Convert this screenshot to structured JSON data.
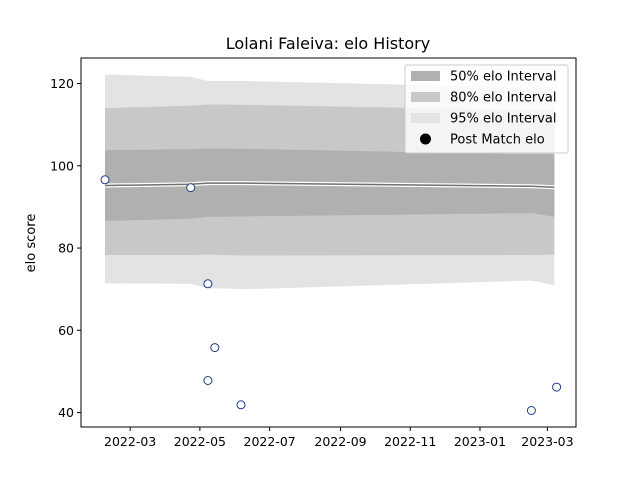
{
  "chart_data": {
    "type": "area",
    "title": "Lolani Faleiva: elo History",
    "xlabel": "",
    "ylabel": "elo score",
    "xlim": [
      "2022-01-17",
      "2023-03-26"
    ],
    "ylim": [
      36.5,
      126.2
    ],
    "x_ticks": [
      "2022-03",
      "2022-05",
      "2022-07",
      "2022-09",
      "2022-11",
      "2023-01",
      "2023-03"
    ],
    "y_ticks": [
      40,
      60,
      80,
      100,
      120
    ],
    "grid": false,
    "legend_position": "top-right",
    "legend": [
      {
        "label": "50% elo Interval",
        "color": "#b0b0b0",
        "marker": "patch"
      },
      {
        "label": "80% elo Interval",
        "color": "#c8c8c8",
        "marker": "patch"
      },
      {
        "label": "95% elo Interval",
        "color": "#e3e3e3",
        "marker": "patch"
      },
      {
        "label": "Post Match elo",
        "color": "#000000",
        "marker": "circle"
      }
    ],
    "x": [
      "2022-02-07",
      "2022-04-23",
      "2022-05-08",
      "2022-05-20",
      "2022-06-10",
      "2023-02-15",
      "2023-03-07"
    ],
    "series": [
      {
        "band": "95",
        "fill": "#e3e3e3",
        "upper": [
          122.2,
          121.6,
          120.6,
          120.6,
          120.6,
          119.0,
          119.2
        ],
        "lower": [
          71.4,
          71.3,
          70.2,
          70.2,
          70.0,
          72.1,
          71.0
        ]
      },
      {
        "band": "80",
        "fill": "#c8c8c8",
        "upper": [
          114.0,
          114.6,
          114.9,
          114.9,
          114.8,
          113.5,
          113.6
        ],
        "lower": [
          78.3,
          78.3,
          78.4,
          78.3,
          78.2,
          78.3,
          78.4
        ]
      },
      {
        "band": "50",
        "fill": "#b0b0b0",
        "upper": [
          103.8,
          104.0,
          104.2,
          104.2,
          104.1,
          102.8,
          102.8
        ],
        "lower": [
          86.6,
          87.1,
          87.6,
          87.6,
          87.7,
          88.5,
          87.6
        ]
      },
      {
        "band": "mean",
        "stroke": "#707070",
        "values": [
          95.2,
          95.5,
          95.8,
          95.8,
          95.8,
          95.0,
          94.8
        ]
      }
    ],
    "post_match": {
      "x": [
        "2022-02-07",
        "2022-04-23",
        "2022-05-08",
        "2022-05-14",
        "2022-05-08",
        "2022-06-06",
        "2023-02-15",
        "2023-03-09"
      ],
      "y": [
        96.6,
        94.7,
        71.3,
        55.8,
        47.8,
        41.9,
        40.5,
        46.2
      ],
      "marker_face": "#ffffff",
      "marker_edge": "#1f3b87"
    }
  }
}
